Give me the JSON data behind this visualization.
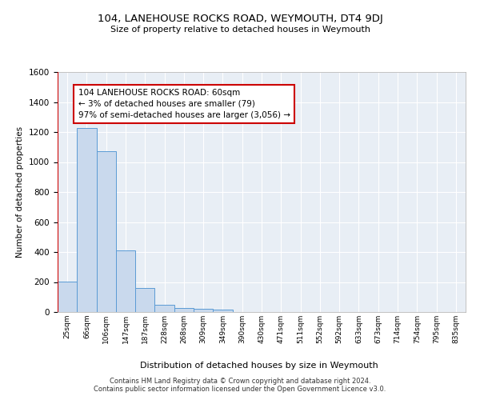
{
  "title": "104, LANEHOUSE ROCKS ROAD, WEYMOUTH, DT4 9DJ",
  "subtitle": "Size of property relative to detached houses in Weymouth",
  "xlabel": "Distribution of detached houses by size in Weymouth",
  "ylabel": "Number of detached properties",
  "bin_labels": [
    "25sqm",
    "66sqm",
    "106sqm",
    "147sqm",
    "187sqm",
    "228sqm",
    "268sqm",
    "309sqm",
    "349sqm",
    "390sqm",
    "430sqm",
    "471sqm",
    "511sqm",
    "552sqm",
    "592sqm",
    "633sqm",
    "673sqm",
    "714sqm",
    "754sqm",
    "795sqm",
    "835sqm"
  ],
  "bar_values": [
    205,
    1225,
    1070,
    410,
    160,
    47,
    28,
    20,
    15,
    0,
    0,
    0,
    0,
    0,
    0,
    0,
    0,
    0,
    0,
    0,
    0
  ],
  "bar_color": "#c9d9ed",
  "bar_edge_color": "#5b9bd5",
  "highlight_color": "#cc0000",
  "annotation_line1": "104 LANEHOUSE ROCKS ROAD: 60sqm",
  "annotation_line2": "← 3% of detached houses are smaller (79)",
  "annotation_line3": "97% of semi-detached houses are larger (3,056) →",
  "annotation_box_color": "#cc0000",
  "ylim": [
    0,
    1600
  ],
  "yticks": [
    0,
    200,
    400,
    600,
    800,
    1000,
    1200,
    1400,
    1600
  ],
  "background_color": "#e8eef5",
  "grid_color": "#ffffff",
  "footer_line1": "Contains HM Land Registry data © Crown copyright and database right 2024.",
  "footer_line2": "Contains public sector information licensed under the Open Government Licence v3.0."
}
